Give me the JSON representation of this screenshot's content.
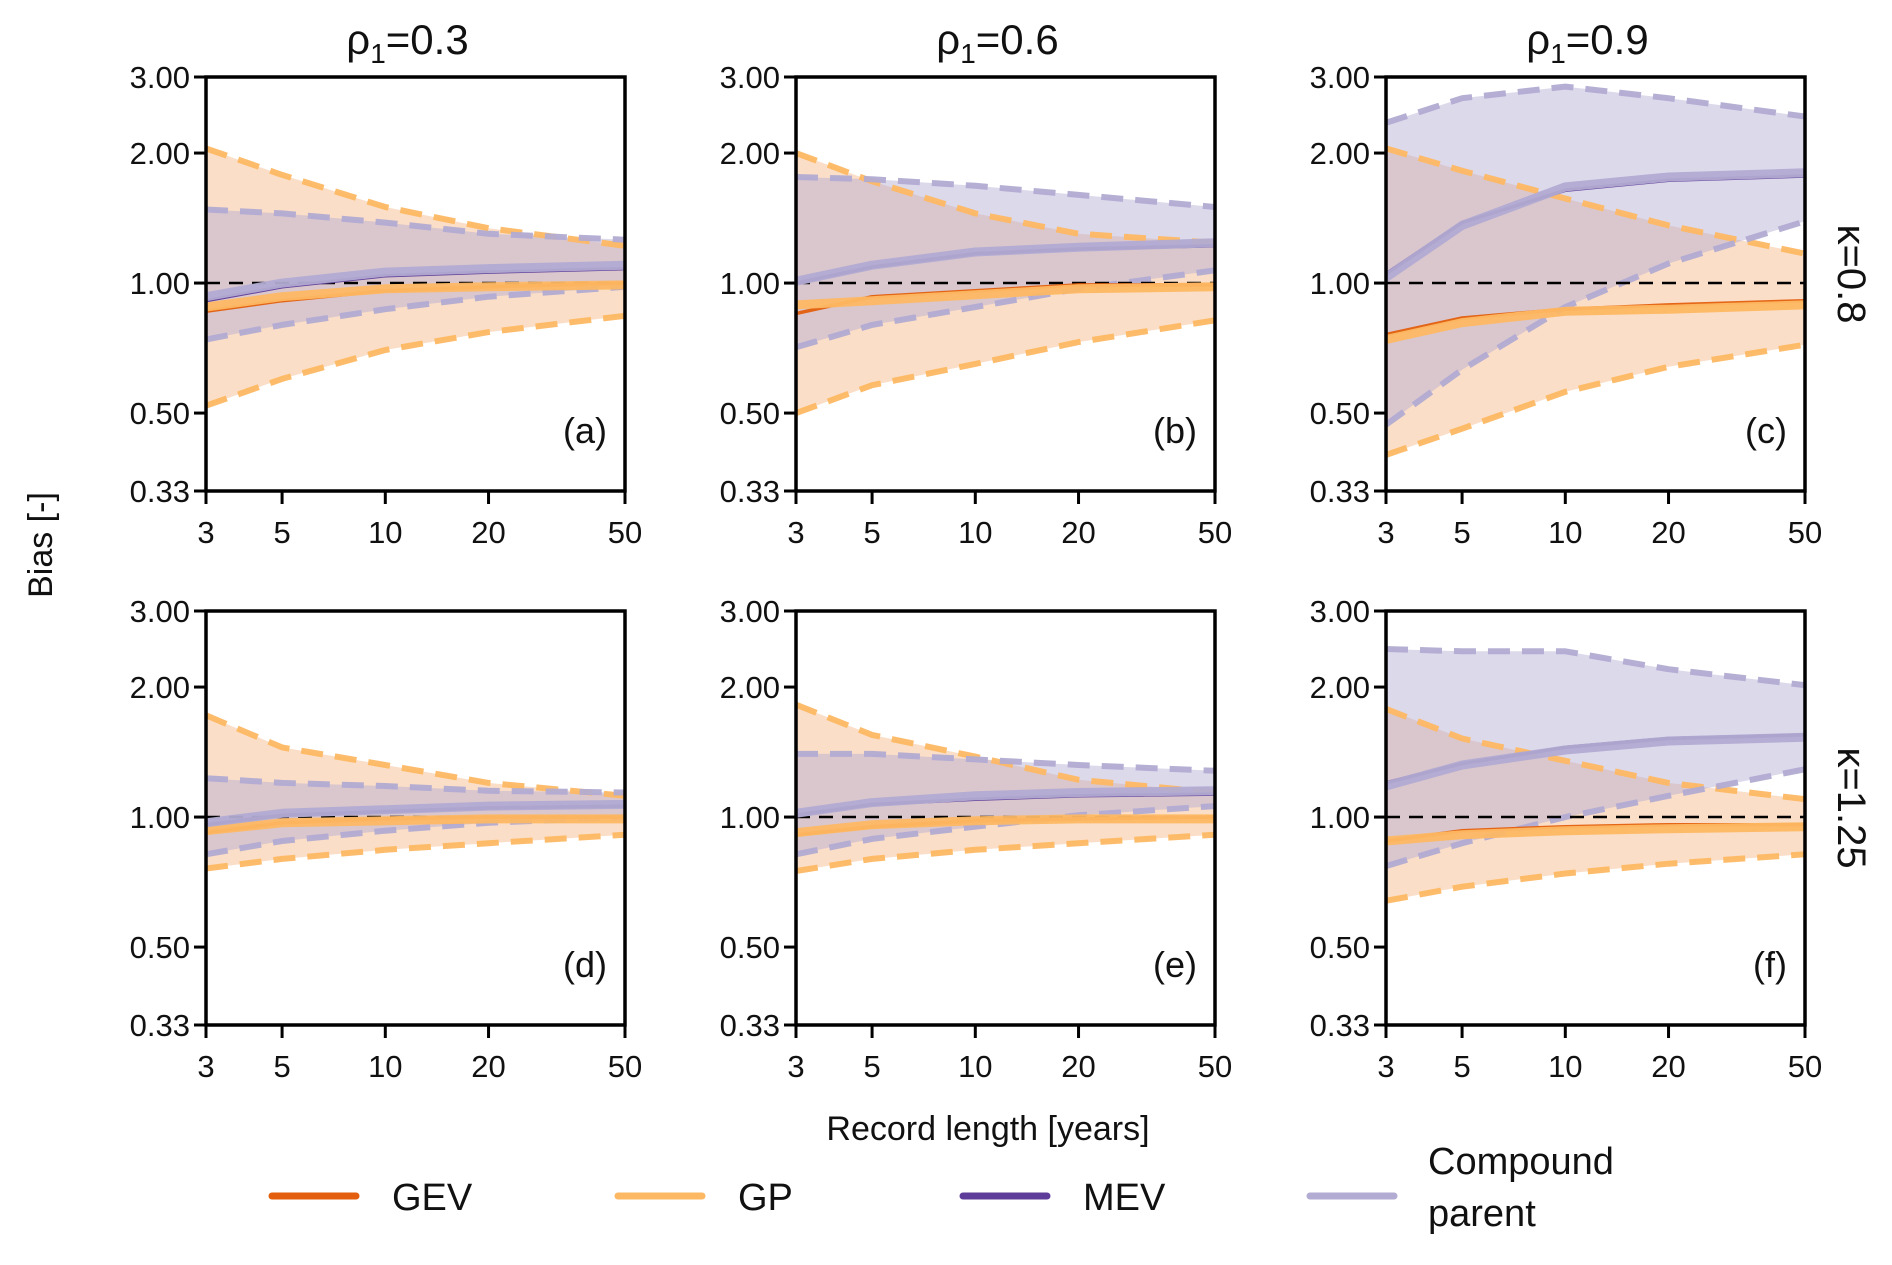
{
  "chart_data": {
    "type": "line",
    "figure": {
      "ylabel": "Bias [-]",
      "xlabel": "Record length [years]",
      "x_scale": "log",
      "y_scale": "log",
      "x": [
        3,
        5,
        10,
        20,
        50
      ],
      "x_ticks": [
        3,
        5,
        10,
        20,
        50
      ],
      "x_tick_labels": [
        "3",
        "5",
        "10",
        "20",
        "50"
      ],
      "xlim": [
        3,
        50
      ],
      "y_ticks": [
        0.33,
        0.5,
        1.0,
        2.0,
        3.0
      ],
      "y_tick_labels": [
        "0.33",
        "0.50",
        "1.00",
        "2.00",
        "3.00"
      ],
      "ylim": [
        0.33,
        3.0
      ],
      "reference_line": 1.0,
      "grid": false,
      "column_titles": [
        {
          "symbol": "ρ",
          "subscript": "1",
          "value": "=0.3"
        },
        {
          "symbol": "ρ",
          "subscript": "1",
          "value": "=0.6"
        },
        {
          "symbol": "ρ",
          "subscript": "1",
          "value": "=0.9"
        }
      ],
      "row_titles": [
        "κ=0.8",
        "κ=1.25"
      ],
      "legend_position": "bottom",
      "legend": [
        {
          "name": "GEV",
          "color": "#e35f0d",
          "lines": [
            "GEV"
          ]
        },
        {
          "name": "GP",
          "color": "#fdb863",
          "lines": [
            "GP"
          ]
        },
        {
          "name": "MEV",
          "color": "#5e3c99",
          "lines": [
            "MEV"
          ]
        },
        {
          "name": "Compound parent",
          "color": "#b2abd2",
          "lines": [
            "Compound",
            "parent"
          ]
        }
      ]
    },
    "colors": {
      "GEV": "#e35f0d",
      "GP": "#fdb863",
      "MEV": "#5e3c99",
      "Compound": "#b2abd2",
      "gp_band": "#f9c9a6",
      "compound_band": "#b2abd2"
    },
    "panels": [
      {
        "label": "(a)",
        "rho1": 0.3,
        "kappa": 0.8,
        "series": [
          {
            "name": "GEV",
            "median": [
              0.86,
              0.91,
              0.96,
              0.98,
              1.0
            ]
          },
          {
            "name": "GP",
            "median": [
              0.88,
              0.93,
              0.97,
              0.98,
              0.99
            ],
            "upper": [
              2.05,
              1.78,
              1.5,
              1.34,
              1.22
            ],
            "lower": [
              0.52,
              0.6,
              0.7,
              0.77,
              0.84
            ]
          },
          {
            "name": "MEV",
            "median": [
              0.91,
              0.98,
              1.04,
              1.06,
              1.08
            ]
          },
          {
            "name": "Compound parent",
            "median": [
              0.93,
              1.0,
              1.06,
              1.08,
              1.1
            ],
            "upper": [
              1.48,
              1.45,
              1.38,
              1.3,
              1.26
            ],
            "lower": [
              0.74,
              0.8,
              0.87,
              0.93,
              0.98
            ]
          }
        ]
      },
      {
        "label": "(b)",
        "rho1": 0.6,
        "kappa": 0.8,
        "series": [
          {
            "name": "GEV",
            "median": [
              0.85,
              0.93,
              0.96,
              0.99,
              0.99
            ]
          },
          {
            "name": "GP",
            "median": [
              0.89,
              0.91,
              0.94,
              0.97,
              0.98
            ],
            "upper": [
              2.0,
              1.72,
              1.45,
              1.3,
              1.24
            ],
            "lower": [
              0.5,
              0.58,
              0.65,
              0.73,
              0.82
            ]
          },
          {
            "name": "MEV",
            "median": [
              1.0,
              1.09,
              1.17,
              1.2,
              1.22
            ]
          },
          {
            "name": "Compound parent",
            "median": [
              1.01,
              1.1,
              1.18,
              1.21,
              1.24
            ],
            "upper": [
              1.76,
              1.74,
              1.68,
              1.6,
              1.5
            ],
            "lower": [
              0.71,
              0.8,
              0.88,
              0.97,
              1.07
            ]
          }
        ]
      },
      {
        "label": "(c)",
        "rho1": 0.9,
        "kappa": 0.8,
        "series": [
          {
            "name": "GEV",
            "median": [
              0.76,
              0.83,
              0.87,
              0.89,
              0.91
            ]
          },
          {
            "name": "GP",
            "median": [
              0.74,
              0.81,
              0.86,
              0.87,
              0.89
            ],
            "upper": [
              2.05,
              1.82,
              1.57,
              1.36,
              1.17
            ],
            "lower": [
              0.4,
              0.46,
              0.56,
              0.64,
              0.72
            ]
          },
          {
            "name": "MEV",
            "median": [
              1.05,
              1.38,
              1.64,
              1.73,
              1.77
            ]
          },
          {
            "name": "Compound parent",
            "median": [
              1.03,
              1.36,
              1.67,
              1.76,
              1.8
            ],
            "upper": [
              2.35,
              2.68,
              2.85,
              2.68,
              2.43
            ],
            "lower": [
              0.47,
              0.63,
              0.88,
              1.11,
              1.39
            ]
          }
        ]
      },
      {
        "label": "(d)",
        "rho1": 0.3,
        "kappa": 1.25,
        "series": [
          {
            "name": "GEV",
            "median": [
              0.92,
              0.97,
              0.99,
              1.0,
              1.0
            ]
          },
          {
            "name": "GP",
            "median": [
              0.93,
              0.97,
              0.98,
              0.99,
              0.99
            ],
            "upper": [
              1.72,
              1.45,
              1.32,
              1.2,
              1.12
            ],
            "lower": [
              0.76,
              0.8,
              0.84,
              0.87,
              0.91
            ]
          },
          {
            "name": "MEV",
            "median": [
              0.96,
              1.01,
              1.03,
              1.05,
              1.06
            ]
          },
          {
            "name": "Compound parent",
            "median": [
              0.97,
              1.02,
              1.04,
              1.06,
              1.07
            ],
            "upper": [
              1.23,
              1.2,
              1.18,
              1.15,
              1.14
            ],
            "lower": [
              0.82,
              0.88,
              0.93,
              0.97,
              1.0
            ]
          }
        ]
      },
      {
        "label": "(e)",
        "rho1": 0.6,
        "kappa": 1.25,
        "series": [
          {
            "name": "GEV",
            "median": [
              0.91,
              0.95,
              0.98,
              0.99,
              1.0
            ]
          },
          {
            "name": "GP",
            "median": [
              0.92,
              0.96,
              0.98,
              0.99,
              0.99
            ],
            "upper": [
              1.82,
              1.55,
              1.38,
              1.22,
              1.14
            ],
            "lower": [
              0.75,
              0.8,
              0.84,
              0.87,
              0.91
            ]
          },
          {
            "name": "MEV",
            "median": [
              1.01,
              1.07,
              1.1,
              1.12,
              1.13
            ]
          },
          {
            "name": "Compound parent",
            "median": [
              1.02,
              1.08,
              1.12,
              1.14,
              1.15
            ],
            "upper": [
              1.4,
              1.4,
              1.36,
              1.32,
              1.28
            ],
            "lower": [
              0.82,
              0.89,
              0.95,
              1.01,
              1.06
            ]
          }
        ]
      },
      {
        "label": "(f)",
        "rho1": 0.9,
        "kappa": 1.25,
        "series": [
          {
            "name": "GEV",
            "median": [
              0.88,
              0.93,
              0.95,
              0.96,
              0.96
            ]
          },
          {
            "name": "GP",
            "median": [
              0.88,
              0.91,
              0.93,
              0.94,
              0.95
            ],
            "upper": [
              1.78,
              1.52,
              1.35,
              1.2,
              1.1
            ],
            "lower": [
              0.64,
              0.69,
              0.74,
              0.78,
              0.82
            ]
          },
          {
            "name": "MEV",
            "median": [
              1.2,
              1.33,
              1.45,
              1.52,
              1.55
            ]
          },
          {
            "name": "Compound parent",
            "median": [
              1.18,
              1.32,
              1.43,
              1.5,
              1.53
            ],
            "upper": [
              2.45,
              2.42,
              2.42,
              2.2,
              2.02
            ],
            "lower": [
              0.77,
              0.87,
              1.0,
              1.12,
              1.29
            ]
          }
        ]
      }
    ]
  }
}
